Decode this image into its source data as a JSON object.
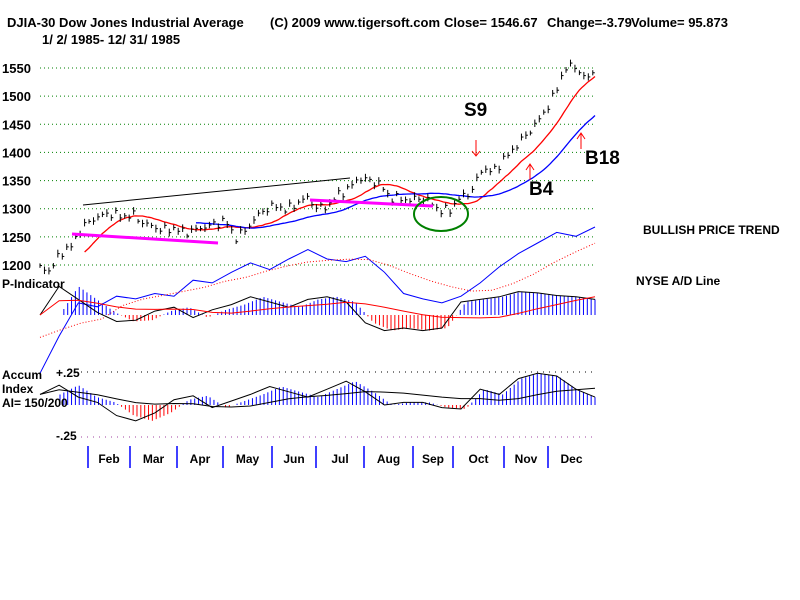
{
  "chart_data": {
    "type": "line",
    "title": "DJIA-30  Dow Jones Industrial Average",
    "copyright": "(C) 2009 www.tigersoft.com",
    "date_range": "1/ 2/ 1985- 12/ 31/ 1985",
    "stats": {
      "close": "Close=  1546.67",
      "change": "Change=-3.79",
      "volume": "Volume= 95.873"
    },
    "y_ticks": [
      "1550",
      "1500",
      "1450",
      "1400",
      "1350",
      "1300",
      "1250",
      "1200"
    ],
    "y_tick_values": [
      1550,
      1500,
      1450,
      1400,
      1350,
      1300,
      1250,
      1200
    ],
    "ylim": [
      1185,
      1575
    ],
    "months": [
      "Feb",
      "Mar",
      "Apr",
      "May",
      "Jun",
      "Jul",
      "Aug",
      "Sep",
      "Oct",
      "Nov",
      "Dec"
    ],
    "weekly_close": [
      1195,
      1190,
      1222,
      1232,
      1265,
      1280,
      1288,
      1292,
      1285,
      1290,
      1275,
      1268,
      1262,
      1265,
      1258,
      1262,
      1268,
      1272,
      1280,
      1248,
      1262,
      1285,
      1300,
      1305,
      1298,
      1310,
      1320,
      1300,
      1305,
      1325,
      1335,
      1355,
      1350,
      1345,
      1320,
      1318,
      1315,
      1320,
      1312,
      1295,
      1300,
      1322,
      1330,
      1372,
      1365,
      1385,
      1405,
      1425,
      1445,
      1470,
      1500,
      1548,
      1555,
      1530,
      1546
    ],
    "ad_line": [
      2,
      30,
      55,
      52,
      60,
      58,
      62,
      60,
      72,
      70,
      78,
      85,
      80,
      88,
      95,
      88,
      86,
      90,
      78,
      62,
      58,
      55,
      60,
      70,
      82,
      92,
      100,
      108,
      105,
      112
    ],
    "p_indicator": [
      0,
      22,
      12,
      2,
      -5,
      -4,
      3,
      6,
      -2,
      4,
      8,
      14,
      10,
      6,
      12,
      14,
      10,
      -6,
      -12,
      -10,
      -12,
      -10,
      10,
      12,
      14,
      18,
      17,
      15,
      14,
      12
    ],
    "accum_index": [
      0.08,
      0.15,
      0.06,
      0.02,
      -0.08,
      -0.12,
      -0.06,
      0.04,
      0.07,
      -0.02,
      0.03,
      0.08,
      0.14,
      0.1,
      0.06,
      0.12,
      0.18,
      0.1,
      0.0,
      0.02,
      0.02,
      -0.02,
      -0.03,
      0.12,
      0.08,
      0.2,
      0.24,
      0.22,
      0.12,
      0.06
    ],
    "ai_range": [
      -0.25,
      0.25
    ],
    "annotations": {
      "s9": "S9",
      "b4": "B4",
      "b18": "B18"
    },
    "labels": {
      "trend": "BULLISH PRICE TREND",
      "ad": "NYSE A/D Line",
      "pind": "P-Indicator",
      "accum": "Accum",
      "index": "Index",
      "ai": "AI= 150/200",
      "ai_top": "+.25",
      "ai_bot": "-.25"
    },
    "colors": {
      "bars": "#000000",
      "ma_short": "#ff0000",
      "ma_long": "#0000ff",
      "grid": "#008000",
      "support": "#ff00ff",
      "ellipse": "#008000",
      "positive": "#0000ff",
      "negative": "#ff0000"
    }
  }
}
